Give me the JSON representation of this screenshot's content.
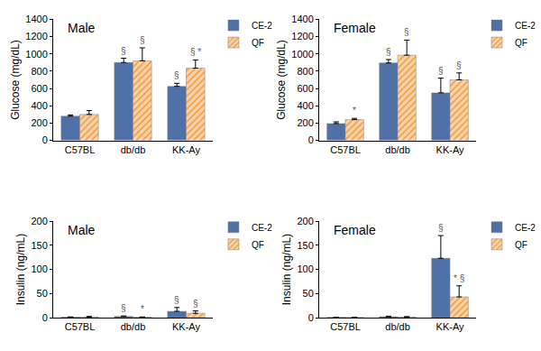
{
  "chart_data": [
    {
      "type": "bar",
      "title": "Male",
      "y_label": "Glucose (mg/dL)",
      "categories": [
        "C57BL",
        "db/db",
        "KK-Ay"
      ],
      "ylim": [
        0,
        1400
      ],
      "yticks": [
        0,
        200,
        400,
        600,
        800,
        1000,
        1200,
        1400
      ],
      "grid": false,
      "legend": "upper right",
      "series": [
        {
          "name": "CE-2",
          "color": "#4f71a8",
          "values": [
            280,
            900,
            625
          ],
          "errors": [
            15,
            50,
            35
          ],
          "annotations": [
            null,
            "§",
            "§"
          ]
        },
        {
          "name": "QF",
          "color": "#fbd3a6",
          "marker": "hatch",
          "values": [
            300,
            920,
            835
          ],
          "errors": [
            45,
            150,
            95
          ],
          "annotations": [
            null,
            "§",
            "§ *"
          ]
        }
      ]
    },
    {
      "type": "bar",
      "title": "Female",
      "y_label": "Glucose (mg/dL)",
      "categories": [
        "C57BL",
        "db/db",
        "KK-Ay"
      ],
      "ylim": [
        0,
        1400
      ],
      "yticks": [
        0,
        200,
        400,
        600,
        800,
        1000,
        1200,
        1400
      ],
      "grid": false,
      "legend": "upper right",
      "series": [
        {
          "name": "CE-2",
          "color": "#4f71a8",
          "values": [
            195,
            895,
            550
          ],
          "errors": [
            20,
            40,
            170
          ],
          "annotations": [
            null,
            "§",
            "§"
          ]
        },
        {
          "name": "QF",
          "color": "#fbd3a6",
          "marker": "hatch",
          "values": [
            240,
            985,
            700
          ],
          "errors": [
            15,
            175,
            80
          ],
          "annotations": [
            "*",
            "§",
            "§"
          ]
        }
      ]
    },
    {
      "type": "bar",
      "title": "Male",
      "y_label": "Insulin (ng/mL)",
      "categories": [
        "C57BL",
        "db/db",
        "KK-Ay"
      ],
      "ylim": [
        0,
        200
      ],
      "yticks": [
        0,
        50,
        100,
        150,
        200
      ],
      "grid": false,
      "legend": "upper right",
      "series": [
        {
          "name": "CE-2",
          "color": "#4f71a8",
          "values": [
            1,
            2.5,
            13
          ],
          "errors": [
            0.5,
            1,
            8
          ],
          "annotations": [
            null,
            "§",
            "§"
          ]
        },
        {
          "name": "QF",
          "color": "#fbd3a6",
          "marker": "hatch",
          "values": [
            1.5,
            1,
            9
          ],
          "errors": [
            1,
            0.5,
            5
          ],
          "annotations": [
            null,
            "*",
            "§"
          ]
        }
      ]
    },
    {
      "type": "bar",
      "title": "Female",
      "y_label": "Insulin (ng/mL)",
      "categories": [
        "C57BL",
        "db/db",
        "KK-Ay"
      ],
      "ylim": [
        0,
        200
      ],
      "yticks": [
        0,
        50,
        100,
        150,
        200
      ],
      "grid": false,
      "legend": "upper right",
      "series": [
        {
          "name": "CE-2",
          "color": "#4f71a8",
          "values": [
            0.5,
            2,
            123
          ],
          "errors": [
            0.3,
            1,
            47
          ],
          "annotations": [
            null,
            null,
            "§"
          ]
        },
        {
          "name": "QF",
          "color": "#fbd3a6",
          "marker": "hatch",
          "values": [
            0.3,
            1.5,
            43
          ],
          "errors": [
            0.2,
            0.5,
            23
          ],
          "annotations": [
            null,
            null,
            "* §"
          ]
        }
      ]
    }
  ]
}
